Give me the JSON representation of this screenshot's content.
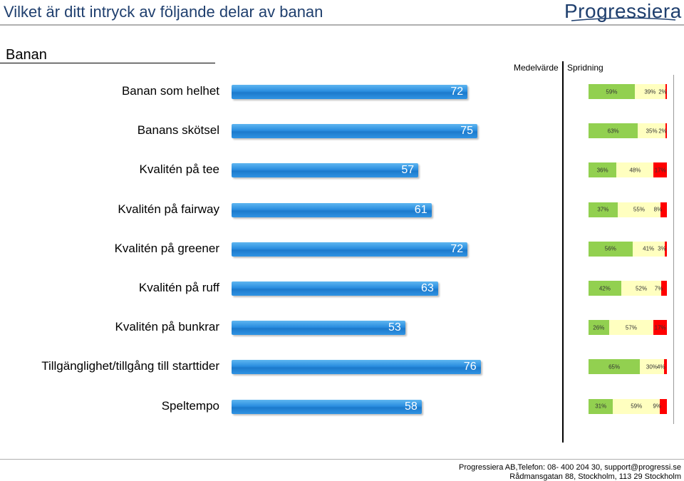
{
  "title": "Vilket är ditt intryck av följande delar av  banan",
  "logo": "Progressiera",
  "section": "Banan",
  "headers": {
    "mean": "Medelvärde",
    "spread": "Spridning"
  },
  "colors": {
    "positive": "#92d050",
    "neutral": "#ffffc0",
    "negative": "#ff0000",
    "bar": "#2a8ee0"
  },
  "chart_data": {
    "type": "bar",
    "orientation": "horizontal",
    "categories": [
      "Banan som helhet",
      "Banans skötsel",
      "Kvalitén på tee",
      "Kvalitén på fairway",
      "Kvalitén på greener",
      "Kvalitén på ruff",
      "Kvalitén på bunkrar",
      "Tillgänglighet/tillgång till starttider",
      "Speltempo"
    ],
    "values": [
      72,
      75,
      57,
      61,
      72,
      63,
      53,
      76,
      58
    ],
    "xlim": [
      0,
      100
    ],
    "distribution": [
      [
        59,
        39,
        2
      ],
      [
        63,
        35,
        2
      ],
      [
        36,
        48,
        17
      ],
      [
        37,
        55,
        8
      ],
      [
        56,
        41,
        3
      ],
      [
        42,
        52,
        7
      ],
      [
        26,
        57,
        17
      ],
      [
        65,
        30,
        4
      ],
      [
        31,
        59,
        9
      ]
    ],
    "distribution_labels": [
      [
        "59%",
        "39%",
        "2%"
      ],
      [
        "63%",
        "35%",
        "2%"
      ],
      [
        "36%",
        "48%",
        "17%"
      ],
      [
        "37%",
        "55%",
        "8%"
      ],
      [
        "56%",
        "41%",
        "3%"
      ],
      [
        "42%",
        "52%",
        "7%"
      ],
      [
        "26%",
        "57%",
        "17%"
      ],
      [
        "65%",
        "30%",
        "4%"
      ],
      [
        "31%",
        "59%",
        "9%"
      ]
    ]
  },
  "footer": {
    "line1": "Progressiera AB,Telefon: 08-  400 204 30, support@progressi.se",
    "line2": "Rådmansgatan 88, Stockholm, 113 29 Stockholm"
  }
}
